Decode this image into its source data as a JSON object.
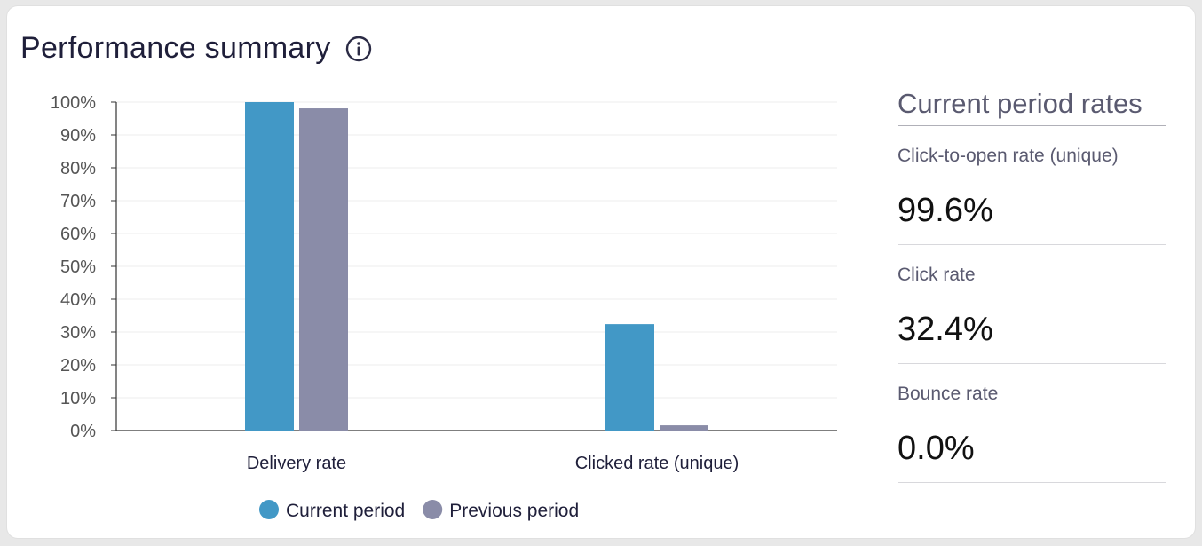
{
  "header": {
    "title": "Performance summary",
    "info_icon": "info-circle-icon"
  },
  "colors": {
    "current": "#4298c6",
    "previous": "#8a8ca8",
    "grid": "#ececec",
    "axis": "#333333"
  },
  "chart_data": {
    "type": "bar",
    "categories": [
      "Delivery rate",
      "Clicked rate (unique)"
    ],
    "series": [
      {
        "name": "Current period",
        "values": [
          100,
          32.4
        ]
      },
      {
        "name": "Previous period",
        "values": [
          98.1,
          1.6
        ]
      }
    ],
    "yticks": [
      "0%",
      "10%",
      "20%",
      "30%",
      "40%",
      "50%",
      "60%",
      "70%",
      "80%",
      "90%",
      "100%"
    ],
    "ylim": [
      0,
      100
    ],
    "grid": true,
    "legend_position": "bottom-center"
  },
  "sidebar": {
    "title": "Current period rates",
    "metrics": [
      {
        "label": "Click-to-open rate (unique)",
        "value": "99.6%"
      },
      {
        "label": "Click rate",
        "value": "32.4%"
      },
      {
        "label": "Bounce rate",
        "value": "0.0%"
      }
    ]
  }
}
